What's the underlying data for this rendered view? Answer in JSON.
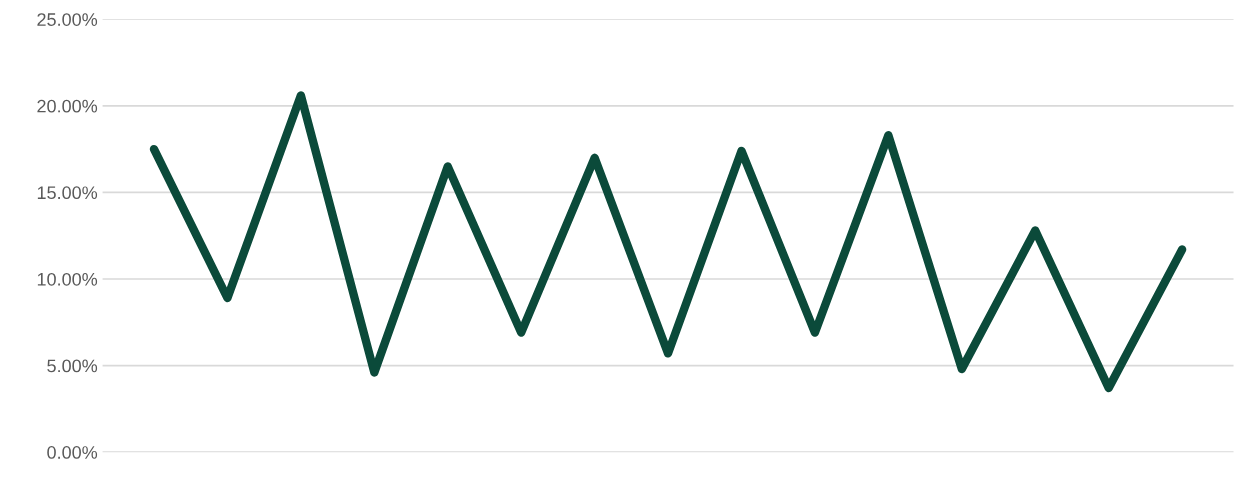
{
  "chart_data": {
    "type": "line",
    "categories": [
      null,
      null,
      null,
      null,
      null,
      null,
      null,
      null,
      null,
      null,
      null,
      null,
      null,
      null,
      null
    ],
    "series": [
      {
        "color": "#0b4a3a",
        "values": [
          17.5,
          8.9,
          20.6,
          4.6,
          16.5,
          6.9,
          17.0,
          5.7,
          17.4,
          6.9,
          18.3,
          4.8,
          12.8,
          3.7,
          11.7
        ]
      }
    ],
    "ylim": [
      0,
      25
    ],
    "yticks": [
      {
        "value": 0,
        "label": "0.00%"
      },
      {
        "value": 5,
        "label": "5.00%"
      },
      {
        "value": 10,
        "label": "10.00%"
      },
      {
        "value": 15,
        "label": "15.00%"
      },
      {
        "value": 20,
        "label": "20.00%"
      },
      {
        "value": 25,
        "label": "25.00%"
      }
    ],
    "grid": "y",
    "marker": "none",
    "line_style": "solid",
    "legend": false
  }
}
